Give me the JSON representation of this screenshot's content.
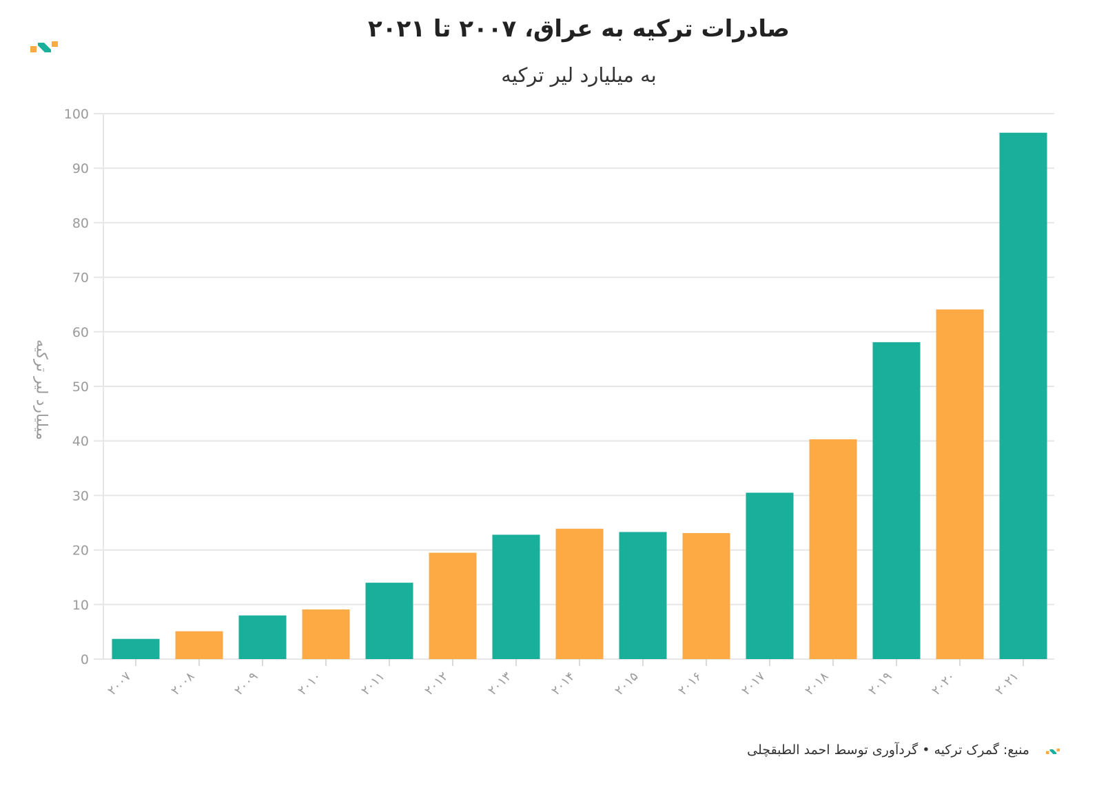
{
  "header": {
    "title": "صادرات ترکیه به عراق، ۲۰۰۷ تا ۲۰۲۱",
    "subtitle": "به میلیارد لیر ترکیه"
  },
  "footer": {
    "source": "منبع: گمرک ترکیه • گردآوری توسط احمد الطبقچلی"
  },
  "colors": {
    "teal": "#1aaf9b",
    "orange": "#fda944",
    "grid": "#e6e6e6",
    "axis_text": "#9a9a9a"
  },
  "chart_data": {
    "type": "bar",
    "title": "صادرات ترکیه به عراق، ۲۰۰۷ تا ۲۰۲۱",
    "subtitle": "به میلیارد لیر ترکیه",
    "ylabel": "میلیارد لیر ترکیه",
    "xlabel": "",
    "ylim": [
      0,
      100
    ],
    "yticks": [
      0,
      10,
      20,
      30,
      40,
      50,
      60,
      70,
      80,
      90,
      100
    ],
    "grid": true,
    "categories": [
      "۲۰۰۷",
      "۲۰۰۸",
      "۲۰۰۹",
      "۲۰۱۰",
      "۲۰۱۱",
      "۲۰۱۲",
      "۲۰۱۳",
      "۲۰۱۴",
      "۲۰۱۵",
      "۲۰۱۶",
      "۲۰۱۷",
      "۲۰۱۸",
      "۲۰۱۹",
      "۲۰۲۰",
      "۲۰۲۱"
    ],
    "values": [
      3.7,
      5.1,
      8.0,
      9.1,
      14.0,
      19.5,
      22.8,
      23.9,
      23.3,
      23.1,
      30.5,
      40.3,
      58.1,
      64.1,
      96.5
    ],
    "bar_colors": [
      "#1aaf9b",
      "#fda944",
      "#1aaf9b",
      "#fda944",
      "#1aaf9b",
      "#fda944",
      "#1aaf9b",
      "#fda944",
      "#1aaf9b",
      "#fda944",
      "#1aaf9b",
      "#fda944",
      "#1aaf9b",
      "#fda944",
      "#1aaf9b"
    ]
  }
}
